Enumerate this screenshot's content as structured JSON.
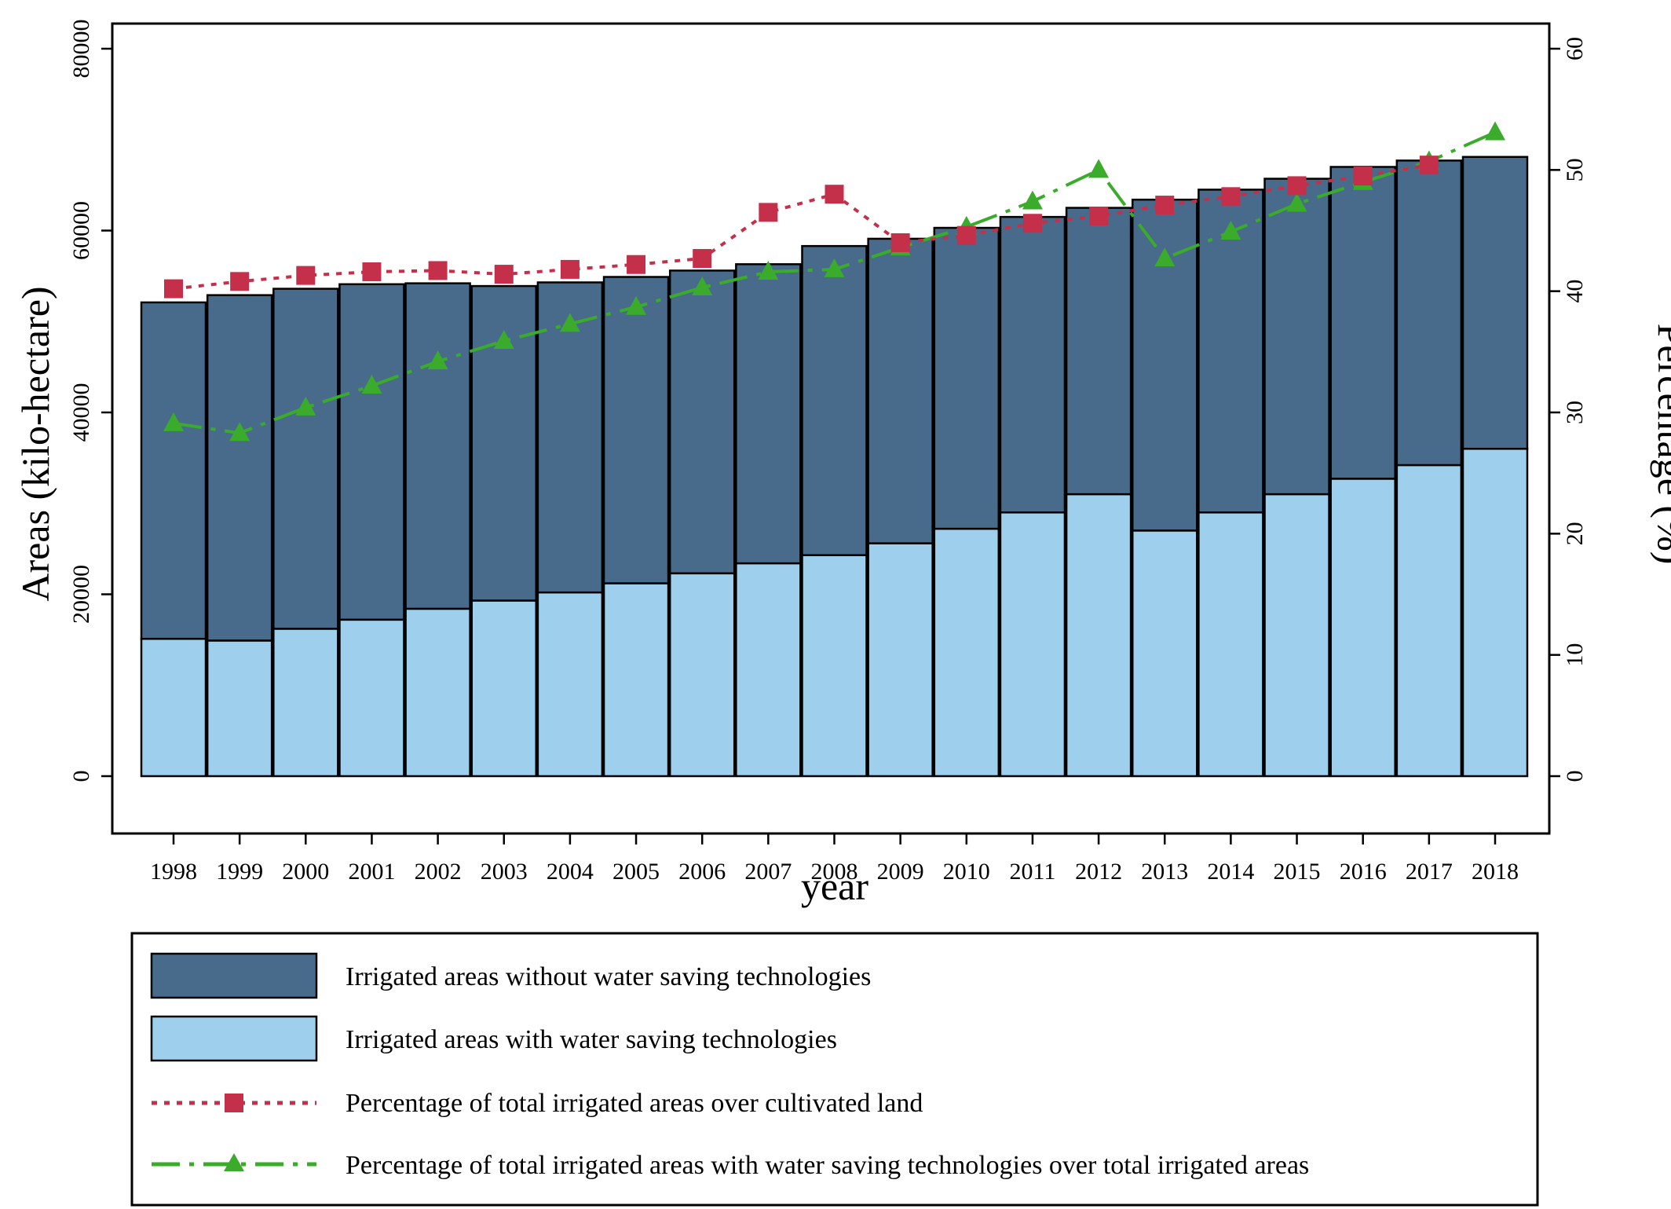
{
  "chart_data": {
    "type": "bar",
    "stacked": true,
    "xlabel": "year",
    "ylabel": "Areas (kilo-hectare)",
    "y2label": "Percentage (%)",
    "ylim": [
      0,
      80000
    ],
    "y2lim": [
      0,
      60
    ],
    "yticks": [
      0,
      20000,
      40000,
      60000,
      80000
    ],
    "y2ticks": [
      0,
      10,
      20,
      30,
      40,
      50,
      60
    ],
    "grid": false,
    "legend_position": "bottom",
    "categories": [
      "1998",
      "1999",
      "2000",
      "2001",
      "2002",
      "2003",
      "2004",
      "2005",
      "2006",
      "2007",
      "2008",
      "2009",
      "2010",
      "2011",
      "2012",
      "2013",
      "2014",
      "2015",
      "2016",
      "2017",
      "2018"
    ],
    "series": [
      {
        "name": "Irrigated areas with water saving technologies",
        "kind": "bar",
        "color": "#9ecfed",
        "values": [
          15100,
          14900,
          16200,
          17200,
          18400,
          19300,
          20200,
          21200,
          22300,
          23400,
          24300,
          25600,
          27200,
          29000,
          31000,
          27000,
          29000,
          31000,
          32700,
          34200,
          36000
        ]
      },
      {
        "name": "Irrigated areas without water saving technologies",
        "kind": "bar",
        "color": "#486b8b",
        "values": [
          37000,
          38000,
          37400,
          36900,
          35800,
          34600,
          34100,
          33700,
          33300,
          32900,
          34000,
          33500,
          33100,
          32500,
          31500,
          36400,
          35500,
          34700,
          34300,
          33500,
          32100
        ]
      },
      {
        "name": "Percentage of total irrigated areas over cultivated land",
        "kind": "line",
        "axis": "right",
        "color": "#c4304a",
        "marker": "square",
        "dash": "dotted",
        "values": [
          40.2,
          40.8,
          41.3,
          41.6,
          41.7,
          41.4,
          41.8,
          42.2,
          42.7,
          46.5,
          48.0,
          44.0,
          44.6,
          45.6,
          46.2,
          47.1,
          47.8,
          48.7,
          49.5,
          50.4,
          null
        ]
      },
      {
        "name": "Percentage of total irrigated areas with water saving technologies over total irrigated areas",
        "kind": "line",
        "axis": "right",
        "color": "#3aab2a",
        "marker": "triangle",
        "dash": "dashdot",
        "values": [
          29.1,
          28.3,
          30.4,
          32.2,
          34.2,
          35.9,
          37.3,
          38.7,
          40.3,
          41.6,
          41.8,
          43.6,
          45.3,
          47.4,
          50.0,
          42.7,
          44.9,
          47.2,
          49.0,
          50.7,
          53.1
        ]
      }
    ]
  }
}
